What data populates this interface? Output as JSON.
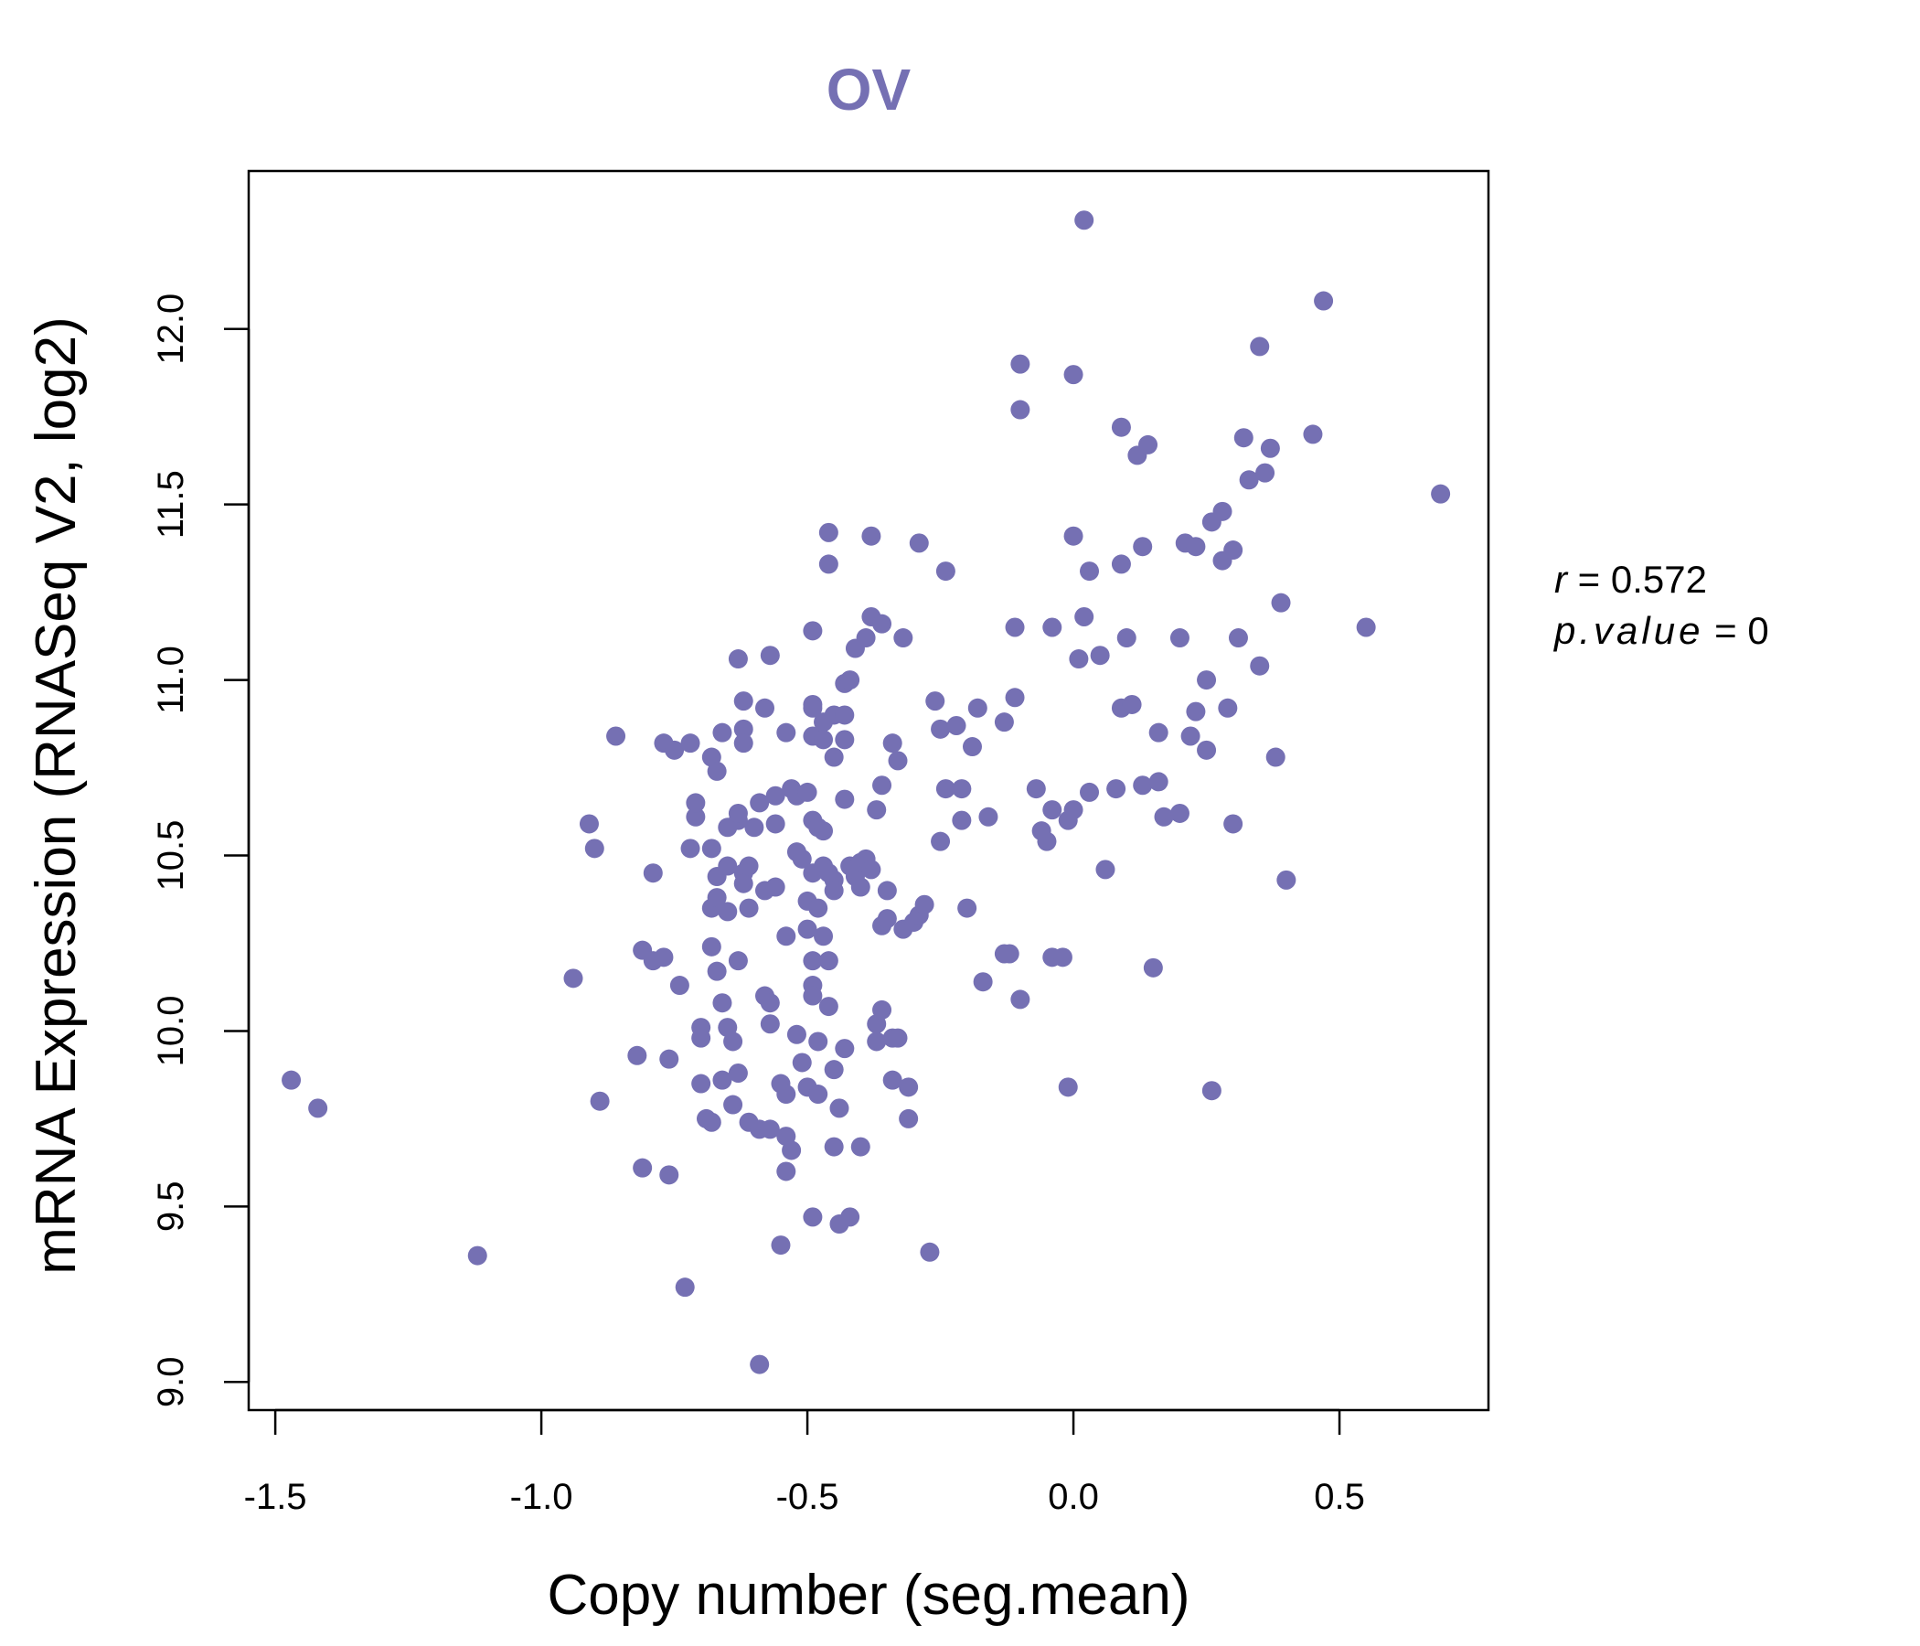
{
  "chart_data": {
    "type": "scatter",
    "title": "OV",
    "xlabel": "Copy number (seg.mean)",
    "ylabel": "mRNA Expression (RNASeq V2, log2)",
    "xlim": [
      -1.55,
      0.78
    ],
    "ylim": [
      8.92,
      12.45
    ],
    "x_ticks": [
      -1.5,
      -1.0,
      -0.5,
      0.0,
      0.5
    ],
    "x_tick_labels": [
      "-1.5",
      "-1.0",
      "-0.5",
      "0.0",
      "0.5"
    ],
    "y_ticks": [
      9.0,
      9.5,
      10.0,
      10.5,
      11.0,
      11.5,
      12.0
    ],
    "y_tick_labels": [
      "9.0",
      "9.5",
      "10.0",
      "10.5",
      "11.0",
      "11.5",
      "12.0"
    ],
    "stats": {
      "r_label": "r",
      "r_value": "0.572",
      "p_label": "p.value",
      "p_value": "0"
    },
    "colors": {
      "points": "#7570b3",
      "title": "#7570b3",
      "axis": "#000000"
    },
    "points": [
      [
        -1.47,
        9.86
      ],
      [
        -1.42,
        9.78
      ],
      [
        -1.12,
        9.36
      ],
      [
        -0.94,
        10.15
      ],
      [
        -0.91,
        10.59
      ],
      [
        -0.9,
        10.52
      ],
      [
        -0.89,
        9.8
      ],
      [
        -0.86,
        10.84
      ],
      [
        -0.82,
        9.93
      ],
      [
        -0.81,
        10.23
      ],
      [
        -0.81,
        9.61
      ],
      [
        -0.79,
        10.45
      ],
      [
        -0.79,
        10.2
      ],
      [
        -0.77,
        10.21
      ],
      [
        -0.77,
        10.82
      ],
      [
        -0.76,
        9.92
      ],
      [
        -0.76,
        9.59
      ],
      [
        -0.75,
        10.8
      ],
      [
        -0.74,
        10.13
      ],
      [
        -0.73,
        9.27
      ],
      [
        -0.72,
        10.52
      ],
      [
        -0.72,
        10.82
      ],
      [
        -0.71,
        10.61
      ],
      [
        -0.71,
        10.65
      ],
      [
        -0.7,
        10.01
      ],
      [
        -0.7,
        9.98
      ],
      [
        -0.7,
        9.85
      ],
      [
        -0.69,
        9.75
      ],
      [
        -0.68,
        10.78
      ],
      [
        -0.68,
        10.52
      ],
      [
        -0.68,
        10.35
      ],
      [
        -0.68,
        10.24
      ],
      [
        -0.68,
        9.74
      ],
      [
        -0.67,
        10.38
      ],
      [
        -0.67,
        10.44
      ],
      [
        -0.67,
        10.17
      ],
      [
        -0.67,
        10.74
      ],
      [
        -0.66,
        10.85
      ],
      [
        -0.66,
        10.08
      ],
      [
        -0.66,
        9.86
      ],
      [
        -0.65,
        10.47
      ],
      [
        -0.65,
        10.58
      ],
      [
        -0.65,
        10.34
      ],
      [
        -0.65,
        10.01
      ],
      [
        -0.64,
        9.97
      ],
      [
        -0.64,
        9.79
      ],
      [
        -0.63,
        11.06
      ],
      [
        -0.63,
        10.6
      ],
      [
        -0.63,
        10.62
      ],
      [
        -0.63,
        10.2
      ],
      [
        -0.63,
        9.88
      ],
      [
        -0.62,
        10.94
      ],
      [
        -0.62,
        10.86
      ],
      [
        -0.62,
        10.82
      ],
      [
        -0.62,
        10.45
      ],
      [
        -0.62,
        10.42
      ],
      [
        -0.61,
        9.74
      ],
      [
        -0.61,
        10.47
      ],
      [
        -0.61,
        10.35
      ],
      [
        -0.6,
        10.58
      ],
      [
        -0.59,
        10.65
      ],
      [
        -0.59,
        9.05
      ],
      [
        -0.59,
        9.72
      ],
      [
        -0.58,
        10.92
      ],
      [
        -0.58,
        10.4
      ],
      [
        -0.58,
        10.1
      ],
      [
        -0.57,
        11.07
      ],
      [
        -0.57,
        10.08
      ],
      [
        -0.57,
        10.02
      ],
      [
        -0.57,
        9.72
      ],
      [
        -0.56,
        10.67
      ],
      [
        -0.56,
        10.59
      ],
      [
        -0.56,
        10.41
      ],
      [
        -0.55,
        9.85
      ],
      [
        -0.55,
        9.39
      ],
      [
        -0.54,
        10.85
      ],
      [
        -0.54,
        10.27
      ],
      [
        -0.54,
        9.82
      ],
      [
        -0.54,
        9.7
      ],
      [
        -0.54,
        9.6
      ],
      [
        -0.53,
        10.69
      ],
      [
        -0.53,
        9.66
      ],
      [
        -0.52,
        10.51
      ],
      [
        -0.52,
        10.67
      ],
      [
        -0.52,
        9.99
      ],
      [
        -0.51,
        10.49
      ],
      [
        -0.51,
        9.91
      ],
      [
        -0.5,
        10.68
      ],
      [
        -0.5,
        10.37
      ],
      [
        -0.5,
        10.29
      ],
      [
        -0.5,
        9.84
      ],
      [
        -0.49,
        11.14
      ],
      [
        -0.49,
        10.93
      ],
      [
        -0.49,
        10.92
      ],
      [
        -0.49,
        10.84
      ],
      [
        -0.49,
        10.6
      ],
      [
        -0.49,
        10.45
      ],
      [
        -0.49,
        10.2
      ],
      [
        -0.49,
        10.13
      ],
      [
        -0.49,
        10.1
      ],
      [
        -0.49,
        9.47
      ],
      [
        -0.48,
        10.58
      ],
      [
        -0.48,
        10.35
      ],
      [
        -0.48,
        9.97
      ],
      [
        -0.48,
        9.82
      ],
      [
        -0.47,
        10.88
      ],
      [
        -0.47,
        10.83
      ],
      [
        -0.47,
        10.47
      ],
      [
        -0.47,
        10.27
      ],
      [
        -0.47,
        10.57
      ],
      [
        -0.46,
        11.33
      ],
      [
        -0.46,
        11.42
      ],
      [
        -0.46,
        10.45
      ],
      [
        -0.46,
        10.2
      ],
      [
        -0.46,
        10.07
      ],
      [
        -0.45,
        10.9
      ],
      [
        -0.45,
        10.78
      ],
      [
        -0.45,
        10.43
      ],
      [
        -0.45,
        10.4
      ],
      [
        -0.45,
        9.89
      ],
      [
        -0.45,
        9.67
      ],
      [
        -0.44,
        9.45
      ],
      [
        -0.44,
        9.78
      ],
      [
        -0.43,
        10.99
      ],
      [
        -0.43,
        10.83
      ],
      [
        -0.43,
        10.9
      ],
      [
        -0.43,
        10.66
      ],
      [
        -0.43,
        9.95
      ],
      [
        -0.42,
        11.0
      ],
      [
        -0.42,
        10.47
      ],
      [
        -0.42,
        9.47
      ],
      [
        -0.41,
        11.09
      ],
      [
        -0.41,
        10.44
      ],
      [
        -0.41,
        10.46
      ],
      [
        -0.4,
        10.41
      ],
      [
        -0.4,
        10.48
      ],
      [
        -0.4,
        9.67
      ],
      [
        -0.39,
        11.12
      ],
      [
        -0.39,
        10.49
      ],
      [
        -0.38,
        11.41
      ],
      [
        -0.38,
        11.18
      ],
      [
        -0.38,
        10.46
      ],
      [
        -0.37,
        10.63
      ],
      [
        -0.37,
        10.02
      ],
      [
        -0.37,
        9.97
      ],
      [
        -0.36,
        11.16
      ],
      [
        -0.36,
        10.7
      ],
      [
        -0.36,
        10.3
      ],
      [
        -0.36,
        10.06
      ],
      [
        -0.35,
        10.4
      ],
      [
        -0.35,
        10.32
      ],
      [
        -0.34,
        10.82
      ],
      [
        -0.34,
        9.98
      ],
      [
        -0.34,
        9.86
      ],
      [
        -0.33,
        10.77
      ],
      [
        -0.33,
        9.98
      ],
      [
        -0.32,
        11.12
      ],
      [
        -0.32,
        10.29
      ],
      [
        -0.31,
        9.75
      ],
      [
        -0.31,
        9.84
      ],
      [
        -0.3,
        10.31
      ],
      [
        -0.29,
        11.39
      ],
      [
        -0.29,
        10.33
      ],
      [
        -0.28,
        10.36
      ],
      [
        -0.27,
        9.37
      ],
      [
        -0.26,
        10.94
      ],
      [
        -0.25,
        10.86
      ],
      [
        -0.25,
        10.54
      ],
      [
        -0.24,
        11.31
      ],
      [
        -0.24,
        10.69
      ],
      [
        -0.22,
        10.87
      ],
      [
        -0.21,
        10.69
      ],
      [
        -0.21,
        10.6
      ],
      [
        -0.2,
        10.35
      ],
      [
        -0.19,
        10.81
      ],
      [
        -0.18,
        10.92
      ],
      [
        -0.17,
        10.14
      ],
      [
        -0.16,
        10.61
      ],
      [
        -0.13,
        10.88
      ],
      [
        -0.13,
        10.22
      ],
      [
        -0.12,
        10.22
      ],
      [
        -0.11,
        11.15
      ],
      [
        -0.11,
        10.95
      ],
      [
        -0.1,
        11.9
      ],
      [
        -0.1,
        11.77
      ],
      [
        -0.1,
        10.09
      ],
      [
        -0.07,
        10.69
      ],
      [
        -0.06,
        10.57
      ],
      [
        -0.05,
        10.54
      ],
      [
        -0.04,
        11.15
      ],
      [
        -0.04,
        10.63
      ],
      [
        -0.04,
        10.21
      ],
      [
        -0.02,
        10.21
      ],
      [
        -0.01,
        10.6
      ],
      [
        -0.01,
        9.84
      ],
      [
        0.0,
        11.87
      ],
      [
        0.0,
        11.41
      ],
      [
        0.0,
        10.63
      ],
      [
        0.01,
        11.06
      ],
      [
        0.02,
        12.31
      ],
      [
        0.02,
        11.18
      ],
      [
        0.03,
        11.31
      ],
      [
        0.03,
        10.68
      ],
      [
        0.05,
        11.07
      ],
      [
        0.06,
        10.46
      ],
      [
        0.08,
        10.69
      ],
      [
        0.09,
        11.72
      ],
      [
        0.09,
        11.33
      ],
      [
        0.09,
        10.92
      ],
      [
        0.1,
        11.12
      ],
      [
        0.11,
        10.93
      ],
      [
        0.12,
        11.64
      ],
      [
        0.13,
        11.38
      ],
      [
        0.13,
        10.7
      ],
      [
        0.14,
        11.67
      ],
      [
        0.15,
        10.18
      ],
      [
        0.16,
        10.85
      ],
      [
        0.16,
        10.71
      ],
      [
        0.17,
        10.61
      ],
      [
        0.2,
        11.12
      ],
      [
        0.2,
        10.62
      ],
      [
        0.21,
        11.39
      ],
      [
        0.22,
        10.84
      ],
      [
        0.23,
        11.38
      ],
      [
        0.23,
        10.91
      ],
      [
        0.25,
        11.0
      ],
      [
        0.25,
        10.8
      ],
      [
        0.26,
        11.45
      ],
      [
        0.26,
        9.83
      ],
      [
        0.28,
        11.48
      ],
      [
        0.28,
        11.34
      ],
      [
        0.29,
        10.92
      ],
      [
        0.3,
        11.37
      ],
      [
        0.3,
        10.59
      ],
      [
        0.31,
        11.12
      ],
      [
        0.32,
        11.69
      ],
      [
        0.33,
        11.57
      ],
      [
        0.35,
        11.95
      ],
      [
        0.35,
        11.04
      ],
      [
        0.36,
        11.59
      ],
      [
        0.37,
        11.66
      ],
      [
        0.38,
        10.78
      ],
      [
        0.39,
        11.22
      ],
      [
        0.4,
        10.43
      ],
      [
        0.45,
        11.7
      ],
      [
        0.47,
        12.08
      ],
      [
        0.55,
        11.15
      ],
      [
        0.69,
        11.53
      ]
    ]
  }
}
